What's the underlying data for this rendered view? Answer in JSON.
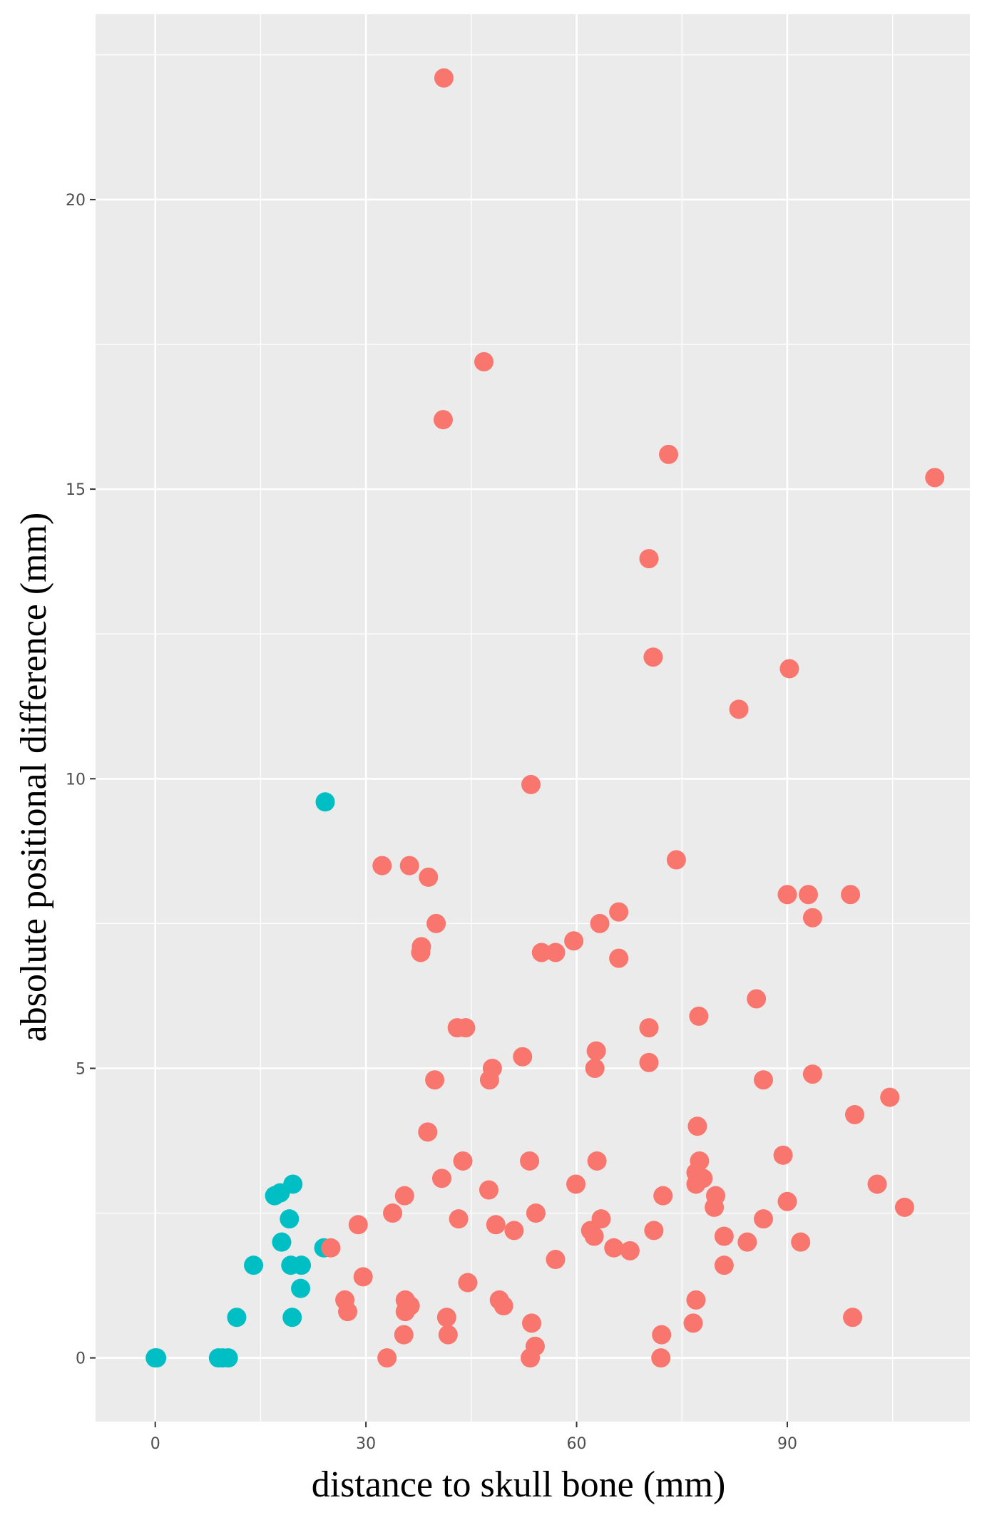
{
  "chart_data": {
    "type": "scatter",
    "title": "",
    "xlabel": "distance to skull bone (mm)",
    "ylabel": "absolute positional difference (mm)",
    "xlim": [
      -8.5,
      116
    ],
    "ylim": [
      -1.1,
      23.2
    ],
    "x_ticks": [
      0,
      30,
      60,
      90
    ],
    "x_tick_labels": [
      "0",
      "30",
      "60",
      "90"
    ],
    "y_ticks": [
      0,
      5,
      10,
      15,
      20
    ],
    "y_tick_labels": [
      "0",
      "5",
      "10",
      "15",
      "20"
    ],
    "grid": true,
    "legend": "none",
    "background": "#ebebeb",
    "colors": {
      "group_a": "#00bfc4",
      "group_b": "#f8766d",
      "grid": "#ffffff"
    },
    "series": [
      {
        "color": "#00bfc4",
        "points": [
          [
            0.0,
            0.0
          ],
          [
            0.2,
            0.0
          ],
          [
            9.0,
            0.0
          ],
          [
            9.6,
            0.0
          ],
          [
            10.4,
            0.0
          ],
          [
            11.6,
            0.7
          ],
          [
            14.0,
            1.6
          ],
          [
            17.0,
            2.8
          ],
          [
            17.8,
            2.85
          ],
          [
            19.6,
            3.0
          ],
          [
            18.0,
            2.0
          ],
          [
            19.1,
            2.4
          ],
          [
            19.3,
            1.6
          ],
          [
            20.8,
            1.6
          ],
          [
            20.7,
            1.2
          ],
          [
            19.5,
            0.7
          ],
          [
            24.0,
            1.9
          ],
          [
            24.2,
            9.6
          ]
        ]
      },
      {
        "color": "#f8766d",
        "points": [
          [
            41.1,
            22.1
          ],
          [
            46.8,
            17.2
          ],
          [
            41.0,
            16.2
          ],
          [
            73.1,
            15.6
          ],
          [
            111.0,
            15.2
          ],
          [
            70.3,
            13.8
          ],
          [
            70.9,
            12.1
          ],
          [
            90.3,
            11.9
          ],
          [
            83.1,
            11.2
          ],
          [
            53.5,
            9.9
          ],
          [
            32.3,
            8.5
          ],
          [
            36.2,
            8.5
          ],
          [
            38.9,
            8.3
          ],
          [
            74.2,
            8.6
          ],
          [
            90.0,
            8.0
          ],
          [
            93.0,
            8.0
          ],
          [
            99.0,
            8.0
          ],
          [
            93.6,
            7.6
          ],
          [
            40.0,
            7.5
          ],
          [
            63.3,
            7.5
          ],
          [
            66.0,
            7.7
          ],
          [
            37.9,
            7.1
          ],
          [
            37.8,
            7.0
          ],
          [
            55.0,
            7.0
          ],
          [
            57.0,
            7.0
          ],
          [
            59.6,
            7.2
          ],
          [
            66.0,
            6.9
          ],
          [
            85.6,
            6.2
          ],
          [
            43.0,
            5.7
          ],
          [
            44.2,
            5.7
          ],
          [
            70.3,
            5.7
          ],
          [
            77.4,
            5.9
          ],
          [
            62.8,
            5.3
          ],
          [
            52.3,
            5.2
          ],
          [
            62.6,
            5.0
          ],
          [
            70.3,
            5.1
          ],
          [
            48.0,
            5.0
          ],
          [
            47.6,
            4.8
          ],
          [
            39.8,
            4.8
          ],
          [
            86.6,
            4.8
          ],
          [
            93.6,
            4.9
          ],
          [
            104.6,
            4.5
          ],
          [
            99.6,
            4.2
          ],
          [
            38.8,
            3.9
          ],
          [
            77.2,
            4.0
          ],
          [
            43.8,
            3.4
          ],
          [
            53.3,
            3.4
          ],
          [
            62.9,
            3.4
          ],
          [
            77.5,
            3.4
          ],
          [
            89.4,
            3.5
          ],
          [
            77.0,
            3.2
          ],
          [
            78.0,
            3.1
          ],
          [
            40.8,
            3.1
          ],
          [
            47.5,
            2.9
          ],
          [
            59.9,
            3.0
          ],
          [
            77.0,
            3.0
          ],
          [
            102.8,
            3.0
          ],
          [
            35.5,
            2.8
          ],
          [
            72.3,
            2.8
          ],
          [
            79.8,
            2.8
          ],
          [
            79.6,
            2.6
          ],
          [
            90.0,
            2.7
          ],
          [
            106.7,
            2.6
          ],
          [
            33.8,
            2.5
          ],
          [
            43.2,
            2.4
          ],
          [
            54.2,
            2.5
          ],
          [
            63.5,
            2.4
          ],
          [
            86.6,
            2.4
          ],
          [
            28.9,
            2.3
          ],
          [
            48.5,
            2.3
          ],
          [
            51.1,
            2.2
          ],
          [
            62.0,
            2.2
          ],
          [
            62.5,
            2.1
          ],
          [
            71.0,
            2.2
          ],
          [
            81.0,
            2.1
          ],
          [
            84.3,
            2.0
          ],
          [
            91.9,
            2.0
          ],
          [
            65.3,
            1.9
          ],
          [
            67.6,
            1.85
          ],
          [
            25.0,
            1.9
          ],
          [
            57.0,
            1.7
          ],
          [
            81.0,
            1.6
          ],
          [
            29.6,
            1.4
          ],
          [
            44.5,
            1.3
          ],
          [
            27.0,
            1.0
          ],
          [
            27.4,
            0.8
          ],
          [
            35.6,
            1.0
          ],
          [
            36.3,
            0.9
          ],
          [
            35.6,
            0.8
          ],
          [
            49.0,
            1.0
          ],
          [
            49.6,
            0.9
          ],
          [
            77.0,
            1.0
          ],
          [
            41.5,
            0.7
          ],
          [
            53.6,
            0.6
          ],
          [
            76.6,
            0.6
          ],
          [
            99.3,
            0.7
          ],
          [
            35.4,
            0.4
          ],
          [
            41.7,
            0.4
          ],
          [
            72.1,
            0.4
          ],
          [
            54.1,
            0.2
          ],
          [
            33.0,
            0.0
          ],
          [
            53.4,
            0.0
          ],
          [
            72.0,
            0.0
          ]
        ]
      }
    ]
  }
}
